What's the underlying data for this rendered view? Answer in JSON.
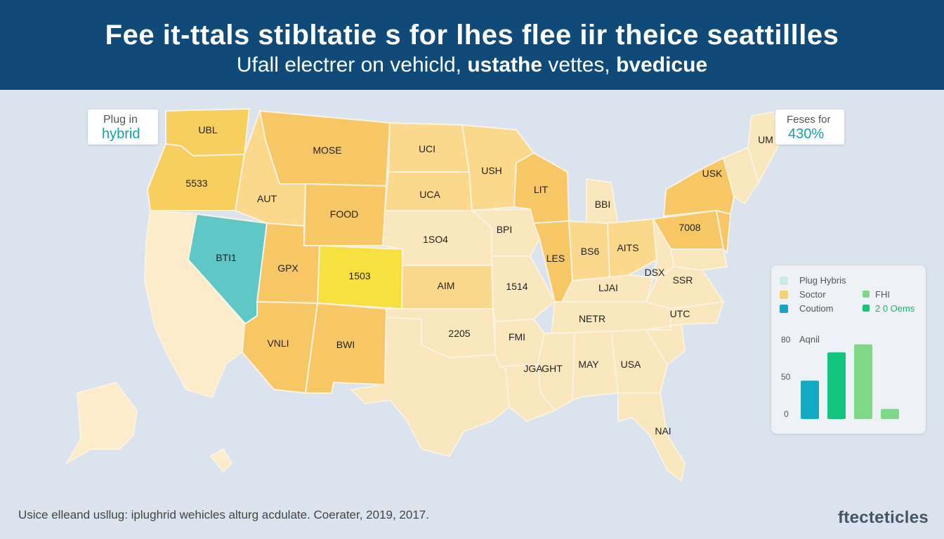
{
  "header": {
    "title": "Fee it-ttals stibltatie s for lhes flee iir theice seattillles",
    "subtitle_plain": "Ufall electrer on vehicld, ",
    "subtitle_bold1": "ustathe",
    "subtitle_mid": " vettes, ",
    "subtitle_bold2": "bvedicue"
  },
  "tags": {
    "left_line1": "Plug in",
    "left_line2": "hybrid",
    "right_line1": "Feses for",
    "right_line2": "430%"
  },
  "colors": {
    "ocean": "#dbe4ee",
    "banner": "#0f4a78",
    "dark_yellow": "#f7cf5e",
    "orange": "#f7c765",
    "light_orange": "#fad98c",
    "pale": "#fae7bd",
    "very_pale": "#fcecc9",
    "teal": "#5fc7c5",
    "bright_yellow": "#f7df3f"
  },
  "states": [
    {
      "id": "wa",
      "label": "UBL",
      "color": "#f7cf5e"
    },
    {
      "id": "or",
      "label": "5533",
      "color": "#f7cf5e"
    },
    {
      "id": "ca",
      "label": "",
      "color": "#fcecc9"
    },
    {
      "id": "nv",
      "label": "BTI1",
      "color": "#5fc7c5"
    },
    {
      "id": "id",
      "label": "AUT",
      "color": "#fad98c"
    },
    {
      "id": "mt",
      "label": "MOSE",
      "color": "#f7c765"
    },
    {
      "id": "wy",
      "label": "FOOD",
      "color": "#f7c765"
    },
    {
      "id": "ut",
      "label": "GPX",
      "color": "#f7c765"
    },
    {
      "id": "co",
      "label": "1503",
      "color": "#f7df3f"
    },
    {
      "id": "az",
      "label": "VNLI",
      "color": "#f7c765"
    },
    {
      "id": "nm",
      "label": "BWI",
      "color": "#f7c765"
    },
    {
      "id": "nd",
      "label": "UCI",
      "color": "#fad98c"
    },
    {
      "id": "sd",
      "label": "UCA",
      "color": "#fad98c"
    },
    {
      "id": "ne",
      "label": "1SO4",
      "color": "#fae7bd"
    },
    {
      "id": "ks",
      "label": "AIM",
      "color": "#fad98c"
    },
    {
      "id": "ok",
      "label": "",
      "color": "#fae7bd"
    },
    {
      "id": "tx",
      "label": "2205",
      "color": "#fae7bd"
    },
    {
      "id": "mn",
      "label": "USH",
      "color": "#fad98c"
    },
    {
      "id": "ia",
      "label": "BPI",
      "color": "#fae7bd"
    },
    {
      "id": "mo",
      "label": "1514",
      "color": "#fae7bd"
    },
    {
      "id": "ar",
      "label": "FMI",
      "color": "#fae7bd"
    },
    {
      "id": "la",
      "label": "JGA",
      "color": "#fae7bd"
    },
    {
      "id": "wi",
      "label": "LIT",
      "color": "#f7c765"
    },
    {
      "id": "mi",
      "label": "BBI",
      "color": "#fae7bd"
    },
    {
      "id": "il",
      "label": "LES",
      "color": "#f7c765"
    },
    {
      "id": "in",
      "label": "BS6",
      "color": "#fad98c"
    },
    {
      "id": "oh",
      "label": "AITS",
      "color": "#fad98c"
    },
    {
      "id": "ky",
      "label": "LJAI",
      "color": "#fae7bd"
    },
    {
      "id": "tn",
      "label": "NETR",
      "color": "#fae7bd"
    },
    {
      "id": "ms",
      "label": "GHT",
      "color": "#fae7bd"
    },
    {
      "id": "al",
      "label": "MAY",
      "color": "#fae7bd"
    },
    {
      "id": "ga",
      "label": "USA",
      "color": "#fae7bd"
    },
    {
      "id": "fl",
      "label": "NAI",
      "color": "#fae7bd"
    },
    {
      "id": "sc",
      "label": "",
      "color": "#fae7bd"
    },
    {
      "id": "nc",
      "label": "UTC",
      "color": "#fae7bd"
    },
    {
      "id": "va",
      "label": "DSX",
      "color": "#fae7bd"
    },
    {
      "id": "wv",
      "label": "",
      "color": "#fae7bd"
    },
    {
      "id": "pa",
      "label": "7008",
      "color": "#f7c765"
    },
    {
      "id": "ny",
      "label": "USK",
      "color": "#f7c765"
    },
    {
      "id": "md",
      "label": "SSR",
      "color": "#fae7bd"
    },
    {
      "id": "nj",
      "label": "",
      "color": "#f7c765"
    },
    {
      "id": "ne_states",
      "label": "",
      "color": "#fae7bd"
    },
    {
      "id": "me",
      "label": "UM",
      "color": "#fae7bd"
    },
    {
      "id": "ak",
      "label": "",
      "color": "#fcecc9"
    },
    {
      "id": "hi",
      "label": "",
      "color": "#fcecc9"
    }
  ],
  "legend": {
    "items": [
      {
        "label": "Plug Hybris",
        "color": "#c9ece4"
      },
      {
        "label": "Soctor",
        "color": "#f7cf74"
      },
      {
        "label": "Coutiom",
        "color": "#1aa3c4"
      },
      {
        "label": "FHI",
        "color": "#7ed987"
      },
      {
        "label": "2 0 Oems",
        "color": "#19c47a"
      }
    ]
  },
  "chart_data": {
    "type": "bar",
    "title": "Aqnil",
    "yticks": [
      "80",
      "50",
      "0"
    ],
    "ylim": [
      0,
      80
    ],
    "values": [
      38,
      66,
      74,
      10
    ],
    "colors": [
      "#13aac2",
      "#12c47e",
      "#7ed987",
      "#7ed987"
    ]
  },
  "footer": {
    "note": "Usice elleand usllug: iplughrid wehicles alturg acdulate. Coerater, 2019, 2017.",
    "brand": "ftecteticles"
  }
}
